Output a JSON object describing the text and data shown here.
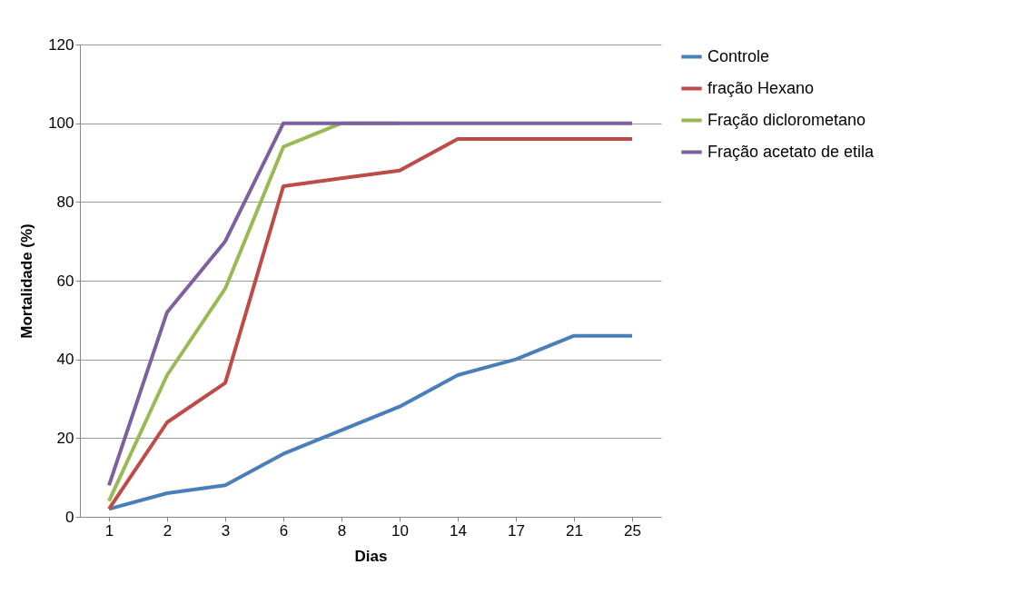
{
  "chart_data": {
    "type": "line",
    "xlabel": "Dias",
    "ylabel": "Mortalidade (%)",
    "categories": [
      "1",
      "2",
      "3",
      "6",
      "8",
      "10",
      "14",
      "17",
      "21",
      "25"
    ],
    "ylim": [
      0,
      120
    ],
    "yticks": [
      0,
      20,
      40,
      60,
      80,
      100,
      120
    ],
    "grid": "y",
    "legend": "right",
    "marker": "none",
    "line_style": "solid",
    "series": [
      {
        "name": "Controle",
        "color": "#4a7ebb",
        "values": [
          2,
          6,
          8,
          16,
          22,
          28,
          36,
          40,
          46,
          46
        ]
      },
      {
        "name": "fração Hexano",
        "color": "#be4b48",
        "values": [
          2,
          24,
          34,
          84,
          86,
          88,
          96,
          96,
          96,
          96
        ]
      },
      {
        "name": "Fração diclorometano",
        "color": "#98b954",
        "values": [
          4,
          36,
          58,
          94,
          100,
          100,
          null,
          null,
          null,
          null
        ]
      },
      {
        "name": "Fração acetato de etila",
        "color": "#7d60a0",
        "values": [
          8,
          52,
          70,
          100,
          100,
          100,
          100,
          100,
          100,
          100
        ]
      }
    ]
  }
}
